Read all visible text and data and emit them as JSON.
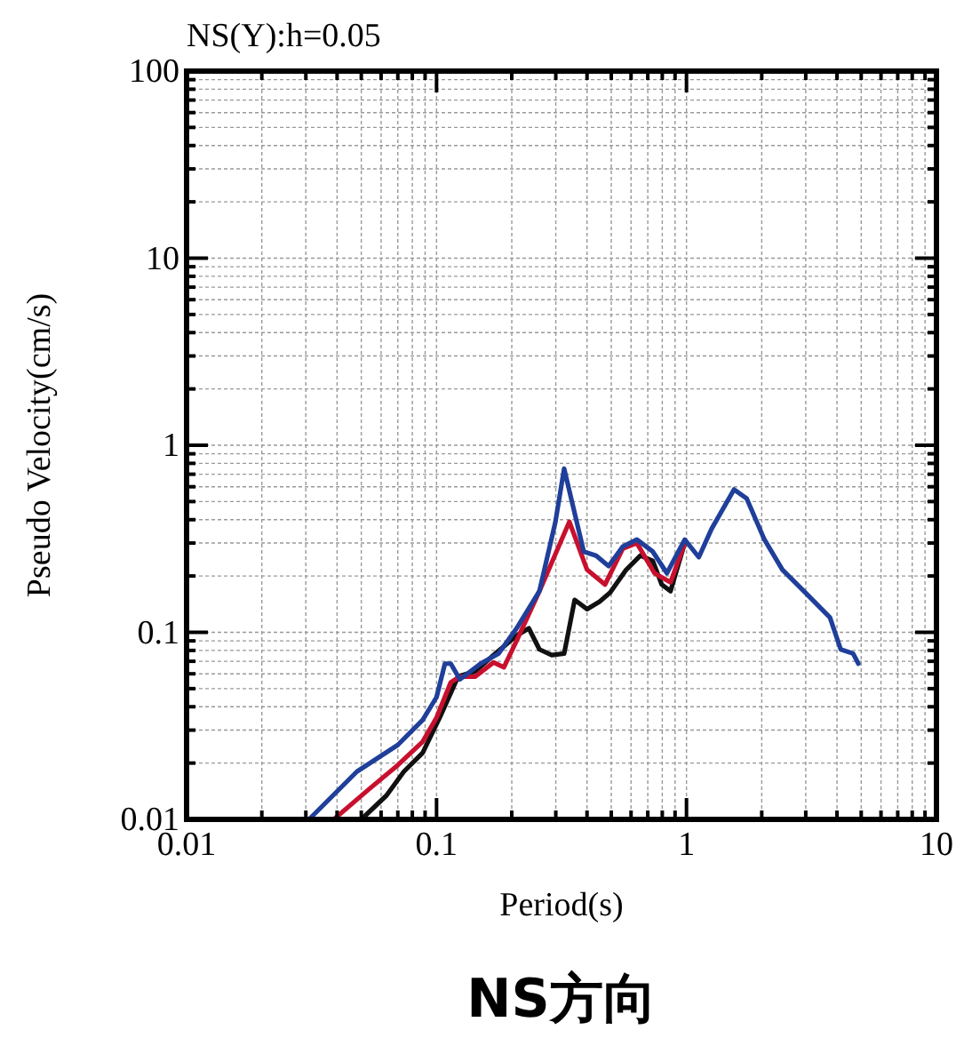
{
  "chart_data": {
    "type": "line",
    "title": "NS(Y):h=0.05",
    "xlabel": "Period(s)",
    "ylabel": "Pseudo Velocity(cm/s)",
    "annotations": [
      "NS方向"
    ],
    "log": "xy",
    "grid": true,
    "marker": "none",
    "line_style": "solid",
    "xlim": [
      0.01,
      10
    ],
    "ylim": [
      0.01,
      100
    ],
    "xticks": [
      0.01,
      {
        "value": 0.02,
        "label": null
      },
      {
        "value": 0.03,
        "label": null
      },
      {
        "value": 0.04,
        "label": null
      },
      {
        "value": 0.05,
        "label": null
      },
      {
        "value": 0.06,
        "label": null
      },
      {
        "value": 0.07,
        "label": null
      },
      {
        "value": 0.08,
        "label": null
      },
      {
        "value": 0.09,
        "label": null
      },
      0.1,
      {
        "value": 0.2,
        "label": null
      },
      {
        "value": 0.3,
        "label": null
      },
      {
        "value": 0.4,
        "label": null
      },
      {
        "value": 0.5,
        "label": null
      },
      {
        "value": 0.6,
        "label": null
      },
      {
        "value": 0.7,
        "label": null
      },
      {
        "value": 0.8,
        "label": null
      },
      {
        "value": 0.9,
        "label": null
      },
      1,
      {
        "value": 2,
        "label": null
      },
      {
        "value": 3,
        "label": null
      },
      {
        "value": 4,
        "label": null
      },
      {
        "value": 5,
        "label": null
      },
      {
        "value": 6,
        "label": null
      },
      {
        "value": 7,
        "label": null
      },
      {
        "value": 8,
        "label": null
      },
      {
        "value": 9,
        "label": null
      },
      10
    ],
    "yticks": [
      0.01,
      {
        "value": 0.02,
        "label": null
      },
      {
        "value": 0.03,
        "label": null
      },
      {
        "value": 0.04,
        "label": null
      },
      {
        "value": 0.05,
        "label": null
      },
      {
        "value": 0.06,
        "label": null
      },
      {
        "value": 0.07,
        "label": null
      },
      {
        "value": 0.08,
        "label": null
      },
      {
        "value": 0.09,
        "label": null
      },
      0.1,
      {
        "value": 0.2,
        "label": null
      },
      {
        "value": 0.3,
        "label": null
      },
      {
        "value": 0.4,
        "label": null
      },
      {
        "value": 0.5,
        "label": null
      },
      {
        "value": 0.6,
        "label": null
      },
      {
        "value": 0.7,
        "label": null
      },
      {
        "value": 0.8,
        "label": null
      },
      {
        "value": 0.9,
        "label": null
      },
      1,
      {
        "value": 2,
        "label": null
      },
      {
        "value": 3,
        "label": null
      },
      {
        "value": 4,
        "label": null
      },
      {
        "value": 5,
        "label": null
      },
      {
        "value": 6,
        "label": null
      },
      {
        "value": 7,
        "label": null
      },
      {
        "value": 8,
        "label": null
      },
      {
        "value": 9,
        "label": null
      },
      10,
      {
        "value": 20,
        "label": null
      },
      {
        "value": 30,
        "label": null
      },
      {
        "value": 40,
        "label": null
      },
      {
        "value": 50,
        "label": null
      },
      {
        "value": 60,
        "label": null
      },
      {
        "value": 70,
        "label": null
      },
      {
        "value": 80,
        "label": null
      },
      {
        "value": 90,
        "label": null
      },
      100
    ],
    "series": [
      {
        "color": "#111111",
        "x": [
          0.05,
          0.063,
          0.074,
          0.088,
          0.103,
          0.122,
          0.143,
          0.169,
          0.209,
          0.234,
          0.258,
          0.289,
          0.324,
          0.357,
          0.4,
          0.449,
          0.495,
          0.574,
          0.654,
          0.733,
          0.796,
          0.863,
          0.984
        ],
        "values": [
          0.01,
          0.0134,
          0.018,
          0.0227,
          0.035,
          0.058,
          0.062,
          0.0755,
          0.096,
          0.105,
          0.081,
          0.0755,
          0.077,
          0.149,
          0.133,
          0.146,
          0.163,
          0.216,
          0.257,
          0.241,
          0.18,
          0.166,
          0.3
        ]
      },
      {
        "color": "#c8102e",
        "x": [
          0.0388,
          0.054,
          0.07,
          0.088,
          0.1,
          0.114,
          0.124,
          0.143,
          0.169,
          0.186,
          0.209,
          0.258,
          0.34,
          0.4,
          0.472,
          0.556,
          0.633,
          0.745,
          0.863,
          0.984
        ],
        "values": [
          0.01,
          0.0146,
          0.0195,
          0.026,
          0.035,
          0.054,
          0.058,
          0.058,
          0.069,
          0.065,
          0.09,
          0.166,
          0.39,
          0.216,
          0.18,
          0.28,
          0.3,
          0.207,
          0.185,
          0.3
        ]
      },
      {
        "color": "#1f3f9a",
        "x": [
          0.0309,
          0.048,
          0.07,
          0.088,
          0.1,
          0.108,
          0.114,
          0.124,
          0.15,
          0.177,
          0.209,
          0.258,
          0.299,
          0.324,
          0.388,
          0.435,
          0.488,
          0.556,
          0.633,
          0.733,
          0.835,
          0.984,
          1.12,
          1.26,
          1.55,
          1.74,
          2.05,
          2.42,
          2.99,
          3.75,
          4.14,
          4.64,
          4.87
        ],
        "values": [
          0.01,
          0.018,
          0.025,
          0.034,
          0.045,
          0.068,
          0.068,
          0.056,
          0.068,
          0.077,
          0.105,
          0.166,
          0.39,
          0.75,
          0.27,
          0.257,
          0.226,
          0.287,
          0.313,
          0.27,
          0.207,
          0.313,
          0.252,
          0.357,
          0.58,
          0.52,
          0.313,
          0.216,
          0.163,
          0.12,
          0.081,
          0.077,
          0.068
        ]
      }
    ]
  }
}
